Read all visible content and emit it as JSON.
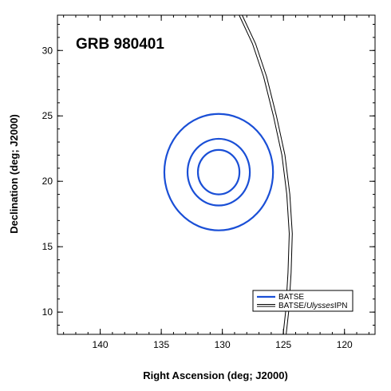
{
  "chart_data": {
    "type": "line",
    "title": "GRB 980401",
    "xlabel": "Right Ascension (deg; J2000)",
    "ylabel": "Declination (deg; J2000)",
    "xlim": [
      143.5,
      117.5
    ],
    "ylim": [
      8.3,
      32.7
    ],
    "x_ticks": [
      140,
      135,
      130,
      125,
      120
    ],
    "y_ticks": [
      10,
      15,
      20,
      25,
      30
    ],
    "x_minor_step": 1,
    "y_minor_step": 1,
    "grid": false,
    "legend_position": "bottom-right",
    "colors": {
      "batse": "#1a4fd6",
      "ipn": "#000000",
      "frame": "#000000"
    },
    "series": [
      {
        "name": "BATSE",
        "kind": "error-circles",
        "center": [
          130.3,
          20.7
        ],
        "radii_deg": [
          4.45,
          2.55,
          1.7
        ]
      },
      {
        "name": "BATSE/Ulysses IPN",
        "kind": "annulus",
        "points": [
          [
            128.5,
            32.7
          ],
          [
            127.4,
            30.5
          ],
          [
            126.5,
            28.0
          ],
          [
            125.7,
            25.0
          ],
          [
            125.0,
            22.0
          ],
          [
            124.6,
            19.0
          ],
          [
            124.4,
            16.0
          ],
          [
            124.5,
            13.0
          ],
          [
            124.7,
            10.0
          ],
          [
            124.9,
            8.3
          ]
        ],
        "width_deg": 0.25
      }
    ],
    "legend": [
      {
        "label": "BATSE",
        "style": "batse"
      },
      {
        "label_parts": [
          "BATSE/",
          "Ulysses",
          "IPN"
        ],
        "style": "ipn"
      }
    ]
  }
}
